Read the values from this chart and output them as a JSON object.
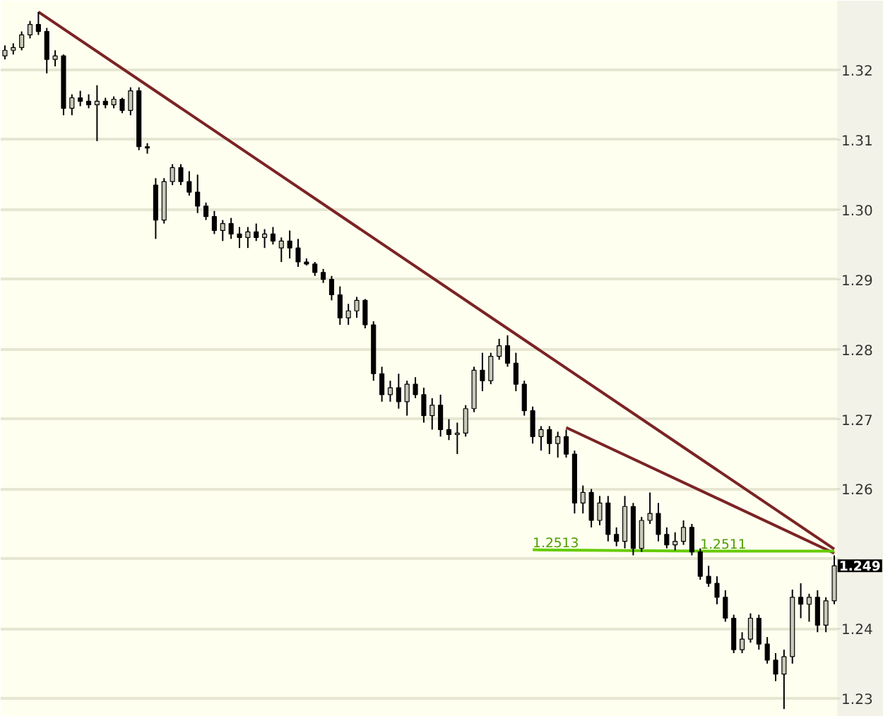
{
  "chart_data": {
    "type": "candlestick",
    "categories": [
      null,
      null,
      null,
      null,
      null,
      null,
      null,
      null,
      null,
      null,
      null,
      null,
      null,
      null,
      null,
      null,
      null,
      null,
      null,
      null,
      null,
      null,
      null,
      null,
      null,
      null,
      null,
      null,
      null,
      null,
      null,
      null,
      null,
      null,
      null,
      null,
      null,
      null,
      null,
      null,
      null,
      null,
      null,
      null,
      null,
      null,
      null,
      null,
      null,
      null,
      null,
      null,
      null,
      null,
      null,
      null,
      null,
      null,
      null,
      null,
      null,
      null,
      null,
      null,
      null,
      null,
      null,
      null,
      null,
      null,
      null,
      null,
      null,
      null,
      null,
      null,
      null,
      null,
      null,
      null,
      null,
      null,
      null,
      null,
      null,
      null,
      null,
      null,
      null,
      null,
      null,
      null,
      null,
      null,
      null,
      null,
      null,
      null,
      null,
      null
    ],
    "ohlc": [
      [
        1.322,
        1.3235,
        1.3215,
        1.3228
      ],
      [
        1.3228,
        1.3238,
        1.3222,
        1.3232
      ],
      [
        1.3232,
        1.3255,
        1.3228,
        1.325
      ],
      [
        1.325,
        1.327,
        1.3245,
        1.3265
      ],
      [
        1.3265,
        1.3283,
        1.325,
        1.3255
      ],
      [
        1.3255,
        1.326,
        1.3195,
        1.3215
      ],
      [
        1.3215,
        1.3228,
        1.3205,
        1.322
      ],
      [
        1.322,
        1.3222,
        1.3135,
        1.3145
      ],
      [
        1.3145,
        1.3165,
        1.3135,
        1.316
      ],
      [
        1.316,
        1.317,
        1.3148,
        1.3155
      ],
      [
        1.3155,
        1.3165,
        1.3145,
        1.315
      ],
      [
        1.315,
        1.3178,
        1.3098,
        1.3155
      ],
      [
        1.3155,
        1.316,
        1.3145,
        1.315
      ],
      [
        1.315,
        1.3162,
        1.3145,
        1.3158
      ],
      [
        1.3158,
        1.316,
        1.3138,
        1.3142
      ],
      [
        1.3142,
        1.3175,
        1.3135,
        1.317
      ],
      [
        1.317,
        1.3175,
        1.3085,
        1.309
      ],
      [
        1.309,
        1.3095,
        1.308,
        1.3088
      ],
      [
        1.3035,
        1.3045,
        1.2958,
        1.2985
      ],
      [
        1.2985,
        1.3045,
        1.298,
        1.304
      ],
      [
        1.304,
        1.3065,
        1.3035,
        1.306
      ],
      [
        1.306,
        1.3065,
        1.3035,
        1.304
      ],
      [
        1.304,
        1.3055,
        1.302,
        1.3025
      ],
      [
        1.3025,
        1.305,
        1.2995,
        1.3005
      ],
      [
        1.3005,
        1.301,
        1.2985,
        1.299
      ],
      [
        1.299,
        1.2998,
        1.2965,
        1.297
      ],
      [
        1.297,
        1.2985,
        1.2955,
        1.298
      ],
      [
        1.298,
        1.2988,
        1.2958,
        1.2965
      ],
      [
        1.2965,
        1.2975,
        1.2945,
        1.296
      ],
      [
        1.296,
        1.2975,
        1.2945,
        1.2968
      ],
      [
        1.2968,
        1.298,
        1.2955,
        1.296
      ],
      [
        1.296,
        1.2972,
        1.2945,
        1.2965
      ],
      [
        1.2965,
        1.2975,
        1.295,
        1.2955
      ],
      [
        1.2945,
        1.296,
        1.2925,
        1.2955
      ],
      [
        1.2955,
        1.297,
        1.293,
        1.2945
      ],
      [
        1.2945,
        1.2958,
        1.2918,
        1.2925
      ],
      [
        1.2925,
        1.293,
        1.292,
        1.2922
      ],
      [
        1.2922,
        1.2925,
        1.2905,
        1.291
      ],
      [
        1.291,
        1.2915,
        1.2895,
        1.29
      ],
      [
        1.29,
        1.2905,
        1.287,
        1.2878
      ],
      [
        1.2878,
        1.289,
        1.2835,
        1.2845
      ],
      [
        1.2845,
        1.2865,
        1.2835,
        1.2855
      ],
      [
        1.2855,
        1.2875,
        1.2845,
        1.287
      ],
      [
        1.287,
        1.2872,
        1.283,
        1.2835
      ],
      [
        1.2835,
        1.284,
        1.2755,
        1.2765
      ],
      [
        1.2765,
        1.2775,
        1.2725,
        1.2735
      ],
      [
        1.2735,
        1.2755,
        1.2725,
        1.2745
      ],
      [
        1.2745,
        1.2765,
        1.2715,
        1.2725
      ],
      [
        1.2725,
        1.2755,
        1.2705,
        1.275
      ],
      [
        1.275,
        1.276,
        1.273,
        1.2735
      ],
      [
        1.2735,
        1.2745,
        1.2695,
        1.2705
      ],
      [
        1.2705,
        1.273,
        1.2685,
        1.272
      ],
      [
        1.272,
        1.2735,
        1.2675,
        1.2685
      ],
      [
        1.2685,
        1.27,
        1.267,
        1.2678
      ],
      [
        1.2678,
        1.2695,
        1.265,
        1.268
      ],
      [
        1.268,
        1.272,
        1.2675,
        1.2715
      ],
      [
        1.2715,
        1.2775,
        1.271,
        1.277
      ],
      [
        1.277,
        1.2795,
        1.274,
        1.2755
      ],
      [
        1.2755,
        1.2795,
        1.275,
        1.279
      ],
      [
        1.279,
        1.2815,
        1.2785,
        1.2805
      ],
      [
        1.2805,
        1.282,
        1.2775,
        1.278
      ],
      [
        1.278,
        1.2795,
        1.274,
        1.275
      ],
      [
        1.275,
        1.2755,
        1.2705,
        1.2712
      ],
      [
        1.2712,
        1.2718,
        1.2665,
        1.2675
      ],
      [
        1.2675,
        1.269,
        1.2655,
        1.2685
      ],
      [
        1.2685,
        1.269,
        1.265,
        1.2665
      ],
      [
        1.2665,
        1.2682,
        1.2645,
        1.2675
      ],
      [
        1.2675,
        1.2685,
        1.2645,
        1.265
      ],
      [
        1.265,
        1.2655,
        1.2565,
        1.258
      ],
      [
        1.258,
        1.2605,
        1.2565,
        1.2595
      ],
      [
        1.2595,
        1.26,
        1.2545,
        1.2555
      ],
      [
        1.2555,
        1.259,
        1.2548,
        1.258
      ],
      [
        1.258,
        1.259,
        1.2525,
        1.2535
      ],
      [
        1.2535,
        1.2545,
        1.2518,
        1.2525
      ],
      [
        1.2525,
        1.259,
        1.2515,
        1.2575
      ],
      [
        1.2575,
        1.258,
        1.2505,
        1.2515
      ],
      [
        1.2515,
        1.256,
        1.251,
        1.2555
      ],
      [
        1.2555,
        1.2595,
        1.255,
        1.2565
      ],
      [
        1.2565,
        1.258,
        1.2525,
        1.2535
      ],
      [
        1.2535,
        1.2545,
        1.2515,
        1.252
      ],
      [
        1.252,
        1.2538,
        1.2512,
        1.2525
      ],
      [
        1.2525,
        1.2555,
        1.252,
        1.2545
      ],
      [
        1.2545,
        1.255,
        1.2505,
        1.251
      ],
      [
        1.251,
        1.2515,
        1.247,
        1.2475
      ],
      [
        1.2475,
        1.249,
        1.246,
        1.2465
      ],
      [
        1.2465,
        1.2475,
        1.2435,
        1.2445
      ],
      [
        1.2445,
        1.2455,
        1.241,
        1.2415
      ],
      [
        1.2415,
        1.242,
        1.2365,
        1.237
      ],
      [
        1.237,
        1.2395,
        1.2365,
        1.2385
      ],
      [
        1.2385,
        1.2422,
        1.238,
        1.2415
      ],
      [
        1.2415,
        1.242,
        1.237,
        1.2378
      ],
      [
        1.2378,
        1.2388,
        1.235,
        1.2355
      ],
      [
        1.2355,
        1.2365,
        1.2325,
        1.2335
      ],
      [
        1.2335,
        1.237,
        1.2285,
        1.236
      ],
      [
        1.236,
        1.2456,
        1.235,
        1.2445
      ],
      [
        1.2445,
        1.2465,
        1.2415,
        1.2435
      ],
      [
        1.2435,
        1.245,
        1.241,
        1.2445
      ],
      [
        1.2445,
        1.2455,
        1.2395,
        1.2405
      ],
      [
        1.2405,
        1.2445,
        1.2395,
        1.244
      ],
      [
        1.244,
        1.2505,
        1.2435,
        1.249
      ]
    ],
    "series": [
      {
        "type": "line",
        "color": "#7b2323",
        "values": [
          null,
          null,
          null,
          null,
          1.3283,
          null,
          null,
          null,
          null,
          null,
          null,
          null,
          null,
          null,
          null,
          null,
          null,
          null,
          null,
          null,
          null,
          null,
          null,
          null,
          null,
          null,
          null,
          null,
          null,
          null,
          null,
          null,
          null,
          null,
          null,
          null,
          null,
          null,
          null,
          null,
          null,
          null,
          null,
          null,
          null,
          null,
          null,
          null,
          null,
          null,
          null,
          null,
          null,
          null,
          null,
          null,
          null,
          null,
          null,
          null,
          null,
          null,
          null,
          null,
          null,
          null,
          null,
          null,
          null,
          null,
          null,
          null,
          null,
          null,
          null,
          null,
          null,
          null,
          null,
          null,
          null,
          null,
          null,
          null,
          null,
          null,
          null,
          null,
          null,
          null,
          null,
          null,
          null,
          null,
          null,
          null,
          null,
          null,
          null,
          1.2514
        ]
      },
      {
        "type": "line",
        "color": "#7b2323",
        "values": [
          null,
          null,
          null,
          null,
          null,
          null,
          null,
          null,
          null,
          null,
          null,
          null,
          null,
          null,
          null,
          null,
          null,
          null,
          null,
          null,
          null,
          null,
          null,
          null,
          null,
          null,
          null,
          null,
          null,
          null,
          null,
          null,
          null,
          null,
          null,
          null,
          null,
          null,
          null,
          null,
          null,
          null,
          null,
          null,
          null,
          null,
          null,
          null,
          null,
          null,
          null,
          null,
          null,
          null,
          null,
          null,
          null,
          null,
          null,
          null,
          null,
          null,
          null,
          null,
          null,
          null,
          null,
          1.2688,
          null,
          null,
          null,
          null,
          null,
          null,
          null,
          null,
          null,
          null,
          null,
          null,
          null,
          null,
          null,
          null,
          null,
          null,
          null,
          null,
          null,
          null,
          null,
          null,
          null,
          null,
          null,
          null,
          null,
          null,
          null,
          1.2508
        ]
      },
      {
        "type": "line",
        "color": "#66cc00",
        "values": [
          null,
          null,
          null,
          null,
          null,
          null,
          null,
          null,
          null,
          null,
          null,
          null,
          null,
          null,
          null,
          null,
          null,
          null,
          null,
          null,
          null,
          null,
          null,
          null,
          null,
          null,
          null,
          null,
          null,
          null,
          null,
          null,
          null,
          null,
          null,
          null,
          null,
          null,
          null,
          null,
          null,
          null,
          null,
          null,
          null,
          null,
          null,
          null,
          null,
          null,
          null,
          null,
          null,
          null,
          null,
          null,
          null,
          null,
          null,
          null,
          null,
          null,
          null,
          1.2513,
          null,
          null,
          null,
          null,
          null,
          null,
          null,
          null,
          null,
          null,
          null,
          null,
          null,
          null,
          null,
          null,
          null,
          null,
          null,
          1.2511,
          null,
          null,
          null,
          null,
          null,
          null,
          null,
          null,
          null,
          null,
          null,
          null,
          null,
          null,
          null,
          1.2511
        ],
        "value_labels": [
          null,
          null,
          null,
          null,
          null,
          null,
          null,
          null,
          null,
          null,
          null,
          null,
          null,
          null,
          null,
          null,
          null,
          null,
          null,
          null,
          null,
          null,
          null,
          null,
          null,
          null,
          null,
          null,
          null,
          null,
          null,
          null,
          null,
          null,
          null,
          null,
          null,
          null,
          null,
          null,
          null,
          null,
          null,
          null,
          null,
          null,
          null,
          null,
          null,
          null,
          null,
          null,
          null,
          null,
          null,
          null,
          null,
          null,
          null,
          null,
          null,
          null,
          null,
          "1.2513",
          null,
          null,
          null,
          null,
          null,
          null,
          null,
          null,
          null,
          null,
          null,
          null,
          null,
          null,
          null,
          null,
          null,
          null,
          null,
          "1.2511",
          null,
          null,
          null,
          null,
          null,
          null,
          null,
          null,
          null,
          null,
          null,
          null,
          null,
          null,
          null,
          null
        ]
      }
    ],
    "annotations": [
      "1.249"
    ],
    "ylim": [
      1.2274,
      1.3299
    ],
    "yticks": [
      {
        "value": 1.23,
        "label": "1.23"
      },
      {
        "value": 1.24,
        "label": "1.24"
      },
      {
        "value": 1.25,
        "label": null
      },
      {
        "value": 1.26,
        "label": "1.26"
      },
      {
        "value": 1.27,
        "label": "1.27"
      },
      {
        "value": 1.28,
        "label": "1.28"
      },
      {
        "value": 1.29,
        "label": "1.29"
      },
      {
        "value": 1.3,
        "label": "1.30"
      },
      {
        "value": 1.31,
        "label": "1.31"
      },
      {
        "value": 1.32,
        "label": "1.32"
      }
    ],
    "tick_labels": "y",
    "grid": "y"
  }
}
